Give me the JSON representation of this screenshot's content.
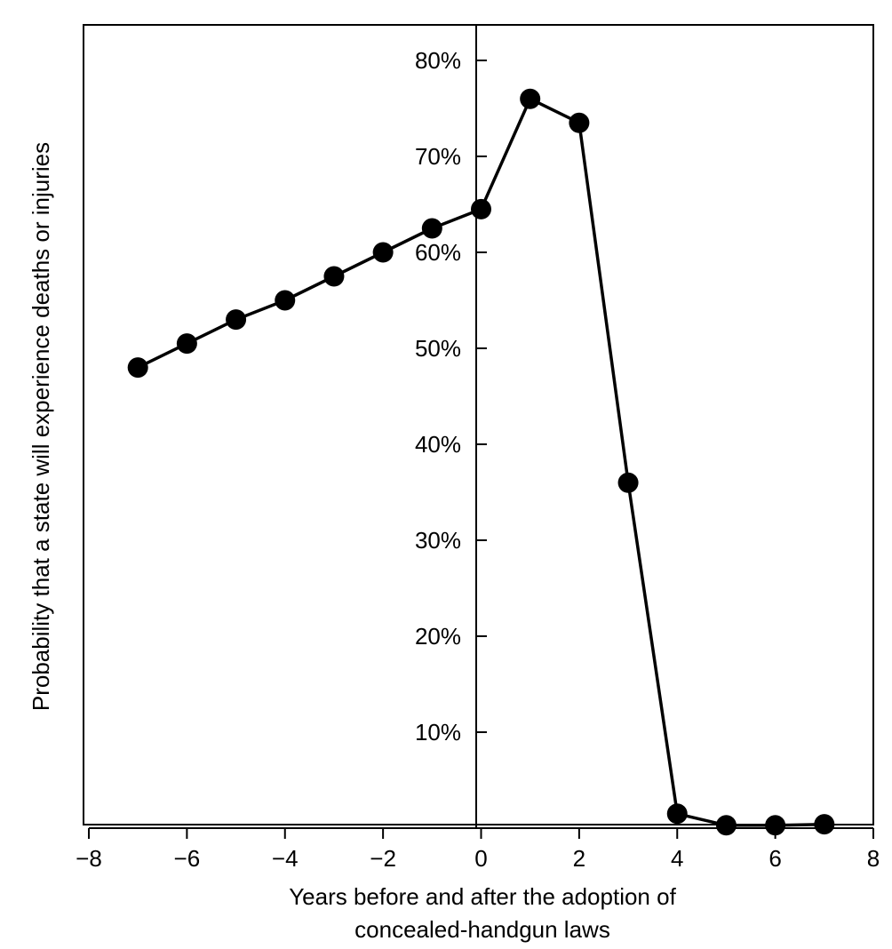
{
  "chart_data": {
    "type": "line",
    "xlabel_line1": "Years before and after the adoption of",
    "xlabel_line2": "concealed-handgun laws",
    "ylabel": "Probability that a state will experience deaths or injuries",
    "xlim": [
      -8,
      8
    ],
    "ylim": [
      0,
      80
    ],
    "x_ticks": [
      -8,
      -6,
      -4,
      -2,
      0,
      2,
      4,
      6,
      8
    ],
    "x_tick_labels": [
      "−8",
      "−6",
      "−4",
      "−2",
      "0",
      "2",
      "4",
      "6",
      "8"
    ],
    "y_ticks": [
      10,
      20,
      30,
      40,
      50,
      60,
      70,
      80
    ],
    "y_tick_labels": [
      "10%",
      "20%",
      "30%",
      "40%",
      "50%",
      "60%",
      "70%",
      "80%"
    ],
    "grid": false,
    "series": [
      {
        "x": [
          -7,
          -6,
          -5,
          -4,
          -3,
          -2,
          -1,
          0,
          1,
          2,
          3,
          4,
          5,
          6,
          7
        ],
        "values": [
          48,
          50.5,
          53,
          55,
          57.5,
          60,
          62.5,
          64.5,
          76,
          73.5,
          36,
          1.5,
          0.3,
          0.3,
          0.4
        ]
      }
    ],
    "colors": {
      "line": "#000000",
      "marker": "#000000",
      "frame": "#000000"
    }
  }
}
